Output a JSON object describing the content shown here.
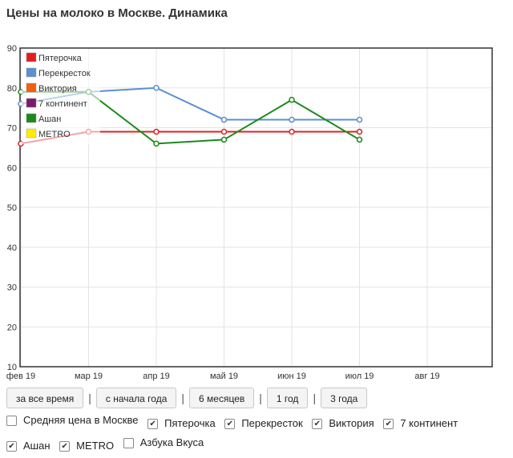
{
  "title": "Цены на молоко в Москве. Динамика",
  "chart_data": {
    "type": "line",
    "categories": [
      "фев 19",
      "мар 19",
      "апр 19",
      "май 19",
      "июн 19",
      "июл 19",
      "авг 19"
    ],
    "ylim": [
      10,
      90
    ],
    "yticks": [
      10,
      20,
      30,
      40,
      50,
      60,
      70,
      80,
      90
    ],
    "grid": true,
    "legend_position": "top-left",
    "series": [
      {
        "name": "Пятерочка",
        "color": "#e02020",
        "values": [
          66,
          69,
          69,
          69,
          69,
          69,
          null
        ]
      },
      {
        "name": "Перекресток",
        "color": "#5a8fd0",
        "values": [
          76,
          79,
          80,
          72,
          72,
          72,
          null
        ]
      },
      {
        "name": "Виктория",
        "color": "#f06010",
        "values": [
          null,
          null,
          null,
          null,
          null,
          null,
          null
        ]
      },
      {
        "name": "7 континент",
        "color": "#7a1a6a",
        "values": [
          null,
          null,
          null,
          null,
          null,
          null,
          null
        ]
      },
      {
        "name": "Ашан",
        "color": "#1a8a1a",
        "values": [
          79,
          79,
          66,
          67,
          77,
          67,
          null
        ]
      },
      {
        "name": "METRO",
        "color": "#ffee00",
        "values": [
          null,
          null,
          null,
          null,
          null,
          null,
          null
        ]
      }
    ]
  },
  "buttons": [
    "за все время",
    "с начала года",
    "6 месяцев",
    "1 год",
    "3 года"
  ],
  "separator": "|",
  "checkboxes": [
    {
      "label": "Средняя цена в Москве",
      "checked": false
    },
    {
      "label": "Пятерочка",
      "checked": true
    },
    {
      "label": "Перекресток",
      "checked": true
    },
    {
      "label": "Виктория",
      "checked": true
    },
    {
      "label": "7 континент",
      "checked": true
    },
    {
      "label": "Ашан",
      "checked": true
    },
    {
      "label": "METRO",
      "checked": true
    },
    {
      "label": "Азбука Вкуса",
      "checked": false
    }
  ],
  "check_mark": "✔"
}
